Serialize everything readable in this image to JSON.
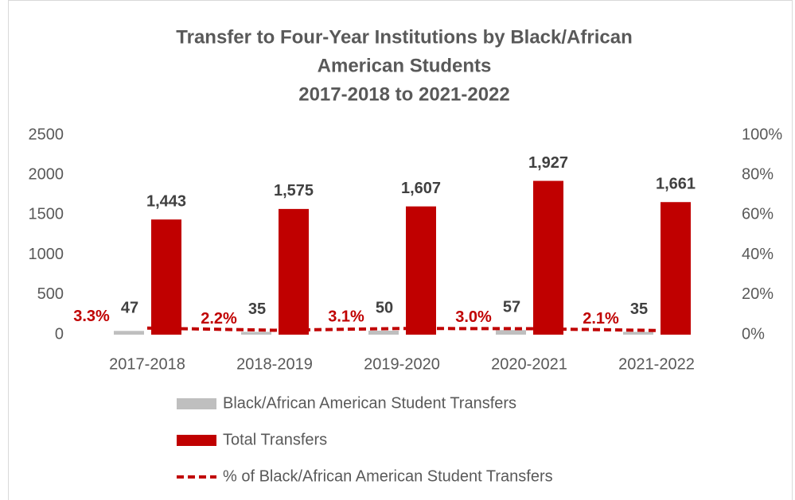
{
  "chart_data": {
    "type": "bar",
    "title": [
      "Transfer to Four-Year Institutions by Black/African",
      "American Students",
      "2017-2018 to 2021-2022"
    ],
    "categories": [
      "2017-2018",
      "2018-2019",
      "2019-2020",
      "2020-2021",
      "2021-2022"
    ],
    "series": [
      {
        "name": "Black/African American Student Transfers",
        "type": "bar",
        "color": "#bfbfbf",
        "values": [
          47,
          35,
          50,
          57,
          35
        ]
      },
      {
        "name": "Total Transfers",
        "type": "bar",
        "color": "#c00000",
        "values": [
          1443,
          1575,
          1607,
          1927,
          1661
        ],
        "value_labels": [
          "1,443",
          "1,575",
          "1,607",
          "1,927",
          "1,661"
        ]
      },
      {
        "name": "% of Black/African American Student Transfers",
        "type": "line",
        "axis": "y2",
        "color": "#c00000",
        "values": [
          3.3,
          2.2,
          3.1,
          3.0,
          2.1
        ],
        "value_labels": [
          "3.3%",
          "2.2%",
          "3.1%",
          "3.0%",
          "2.1%"
        ]
      }
    ],
    "ylim": [
      0,
      2500
    ],
    "yticks": [
      0,
      500,
      1000,
      1500,
      2000,
      2500
    ],
    "y2lim": [
      0,
      100
    ],
    "y2ticks": [
      {
        "value": 0,
        "label": "0%"
      },
      {
        "value": 20,
        "label": "20%"
      },
      {
        "value": 40,
        "label": "40%"
      },
      {
        "value": 60,
        "label": "60%"
      },
      {
        "value": 80,
        "label": "80%"
      },
      {
        "value": 100,
        "label": "100%"
      }
    ],
    "grid": false,
    "legend": "bottom"
  }
}
